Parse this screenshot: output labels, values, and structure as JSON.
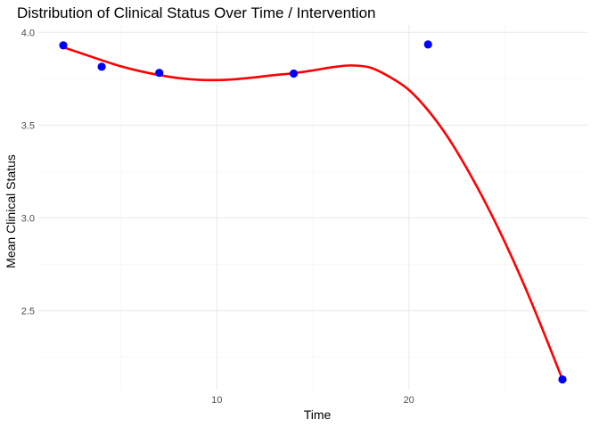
{
  "chart_data": {
    "type": "scatter",
    "title": "Distribution of Clinical Status Over Time / Intervention",
    "xlabel": "Time",
    "ylabel": "Mean Clinical Status",
    "xlim": [
      0.7,
      29.3
    ],
    "ylim": [
      2.075,
      4.04
    ],
    "x_ticks": [
      {
        "value": 10,
        "label": "10"
      },
      {
        "value": 20,
        "label": "20"
      }
    ],
    "x_minor_ticks": [
      5,
      15,
      25
    ],
    "y_ticks": [
      {
        "value": 2.5,
        "label": "2.5"
      },
      {
        "value": 3.0,
        "label": "3.0"
      },
      {
        "value": 3.5,
        "label": "3.5"
      },
      {
        "value": 4.0,
        "label": "4.0"
      }
    ],
    "y_minor_ticks": [
      2.25,
      2.75,
      3.25,
      3.75
    ],
    "grid": true,
    "legend": "none",
    "series": [
      {
        "kind": "points",
        "color": "#0000ff",
        "x": [
          2,
          4,
          7,
          14,
          21,
          28
        ],
        "y": [
          3.93,
          3.815,
          3.782,
          3.778,
          3.935,
          2.13
        ]
      },
      {
        "kind": "smooth",
        "color": "#ff0000",
        "x": [
          2,
          3,
          4,
          5,
          6,
          7,
          8,
          9,
          10,
          11,
          12,
          13,
          14,
          15,
          16,
          17,
          18,
          19,
          20,
          21,
          22,
          23,
          24,
          25,
          26,
          27,
          28
        ],
        "y": [
          3.92,
          3.885,
          3.85,
          3.817,
          3.791,
          3.77,
          3.754,
          3.745,
          3.743,
          3.748,
          3.758,
          3.77,
          3.78,
          3.795,
          3.812,
          3.822,
          3.81,
          3.76,
          3.69,
          3.58,
          3.44,
          3.27,
          3.08,
          2.87,
          2.64,
          2.39,
          2.13
        ]
      }
    ]
  }
}
